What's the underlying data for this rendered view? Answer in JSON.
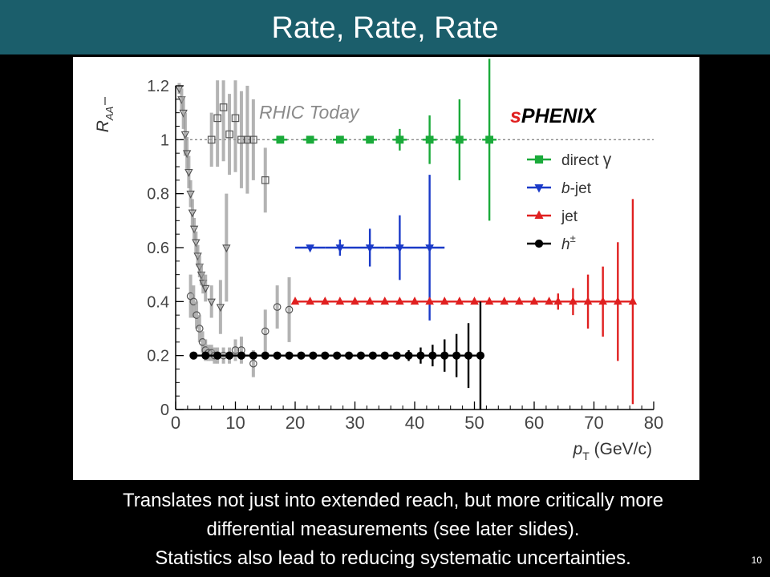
{
  "slide": {
    "title": "Rate, Rate, Rate",
    "caption": [
      "Translates not just into extended reach, but more critically more",
      "differential measurements (see later slides).",
      "Statistics also lead to reducing systematic uncertainties."
    ],
    "slide_number": "10"
  },
  "chart_data": {
    "type": "scatter",
    "xlim": [
      0,
      80
    ],
    "ylim": [
      0,
      1.2
    ],
    "x_ticks": [
      0,
      10,
      20,
      30,
      40,
      50,
      60,
      70,
      80
    ],
    "y_ticks": [
      0,
      0.2,
      0.4,
      0.6,
      0.8,
      1,
      1.2
    ],
    "xlabel": "p_T (GeV/c)",
    "ylabel": "R_AA",
    "reference_line": 1,
    "annotations": {
      "left": "RHIC Today",
      "right": "sPHENIX"
    },
    "legend_position": "right",
    "colors": {
      "direct_gamma": "#1aaa3a",
      "b_jet": "#1a3ac8",
      "jet": "#e02020",
      "hadron": "#000000",
      "rhic": "#777777"
    },
    "series": [
      {
        "name": "direct γ",
        "legend_main": "direct ",
        "legend_sym": "γ",
        "marker": "square",
        "color": "#1aaa3a",
        "y": 1.0,
        "xerr": 1.2,
        "points": [
          [
            17.5,
            0
          ],
          [
            22.5,
            0
          ],
          [
            27.5,
            0
          ],
          [
            32.5,
            0
          ],
          [
            37.5,
            0.04
          ],
          [
            42.5,
            0.09
          ],
          [
            47.5,
            0.15
          ],
          [
            52.5,
            0.3
          ]
        ]
      },
      {
        "name": "b-jet",
        "legend_main": "b",
        "legend_sym": "-jet",
        "marker": "triangle-down",
        "color": "#1a3ac8",
        "y": 0.6,
        "xerr": 2.5,
        "points": [
          [
            22.5,
            0.01
          ],
          [
            27.5,
            0.03
          ],
          [
            32.5,
            0.07
          ],
          [
            37.5,
            0.12
          ],
          [
            42.5,
            0.27
          ]
        ]
      },
      {
        "name": "jet",
        "legend_main": "jet",
        "legend_sym": "",
        "marker": "triangle-up",
        "color": "#e02020",
        "y": 0.4,
        "xerr": 0,
        "points": [
          [
            20,
            0
          ],
          [
            22.5,
            0
          ],
          [
            25,
            0
          ],
          [
            27.5,
            0
          ],
          [
            30,
            0
          ],
          [
            32.5,
            0
          ],
          [
            35,
            0
          ],
          [
            37.5,
            0
          ],
          [
            40,
            0
          ],
          [
            42.5,
            0
          ],
          [
            45,
            0
          ],
          [
            47.5,
            0
          ],
          [
            50,
            0
          ],
          [
            52.5,
            0
          ],
          [
            55,
            0
          ],
          [
            57.5,
            0
          ],
          [
            60,
            0
          ],
          [
            62.5,
            0
          ],
          [
            64,
            0.03
          ],
          [
            66.5,
            0.05
          ],
          [
            69,
            0.1
          ],
          [
            71.5,
            0.13
          ],
          [
            74,
            0.22
          ],
          [
            76.5,
            0.38
          ]
        ]
      },
      {
        "name": "h±",
        "legend_main": "h",
        "legend_sym": "±",
        "marker": "circle",
        "color": "#000000",
        "y": 0.2,
        "xerr": 0,
        "points": [
          [
            3,
            0
          ],
          [
            5,
            0
          ],
          [
            7,
            0
          ],
          [
            9,
            0
          ],
          [
            11,
            0
          ],
          [
            13,
            0
          ],
          [
            15,
            0
          ],
          [
            17,
            0
          ],
          [
            19,
            0
          ],
          [
            21,
            0
          ],
          [
            23,
            0
          ],
          [
            25,
            0
          ],
          [
            27,
            0
          ],
          [
            29,
            0
          ],
          [
            31,
            0
          ],
          [
            33,
            0
          ],
          [
            35,
            0
          ],
          [
            37,
            0.01
          ],
          [
            39,
            0.02
          ],
          [
            41,
            0.03
          ],
          [
            43,
            0.04
          ],
          [
            45,
            0.06
          ],
          [
            47,
            0.08
          ],
          [
            49,
            0.12
          ],
          [
            51,
            0.2
          ]
        ]
      }
    ],
    "rhic_today": {
      "open_triangles": [
        [
          0.6,
          1.19,
          0.02
        ],
        [
          1.0,
          1.15,
          0.04
        ],
        [
          1.3,
          1.1,
          0.06
        ],
        [
          1.6,
          1.02,
          0.08
        ],
        [
          1.9,
          0.95,
          0.06
        ],
        [
          2.2,
          0.88,
          0.06
        ],
        [
          2.5,
          0.8,
          0.05
        ],
        [
          2.8,
          0.73,
          0.05
        ],
        [
          3.1,
          0.67,
          0.04
        ],
        [
          3.4,
          0.62,
          0.04
        ],
        [
          3.7,
          0.57,
          0.04
        ],
        [
          4.0,
          0.53,
          0.04
        ],
        [
          4.3,
          0.5,
          0.04
        ],
        [
          4.6,
          0.47,
          0.04
        ],
        [
          5.0,
          0.45,
          0.05
        ],
        [
          6.0,
          0.4,
          0.06
        ],
        [
          7.5,
          0.38,
          0.1
        ],
        [
          8.5,
          0.6,
          0.2
        ]
      ],
      "open_circles": [
        [
          2.5,
          0.42,
          0.08
        ],
        [
          3.0,
          0.4,
          0.06
        ],
        [
          3.5,
          0.35,
          0.05
        ],
        [
          4.0,
          0.3,
          0.05
        ],
        [
          4.5,
          0.25,
          0.04
        ],
        [
          5.0,
          0.22,
          0.04
        ],
        [
          5.5,
          0.21,
          0.03
        ],
        [
          6.0,
          0.21,
          0.03
        ],
        [
          6.5,
          0.2,
          0.03
        ],
        [
          7.0,
          0.2,
          0.03
        ],
        [
          8.0,
          0.2,
          0.03
        ],
        [
          9.0,
          0.2,
          0.03
        ],
        [
          10.0,
          0.22,
          0.04
        ],
        [
          11.0,
          0.22,
          0.05
        ],
        [
          13.0,
          0.17,
          0.05
        ],
        [
          15.0,
          0.29,
          0.08
        ],
        [
          17.0,
          0.38,
          0.08
        ],
        [
          19.0,
          0.37,
          0.12
        ]
      ],
      "open_squares": [
        [
          6.0,
          1.0,
          0.1
        ],
        [
          7.0,
          1.08,
          0.18
        ],
        [
          8.0,
          1.12,
          0.2
        ],
        [
          9.0,
          1.02,
          0.15
        ],
        [
          10.0,
          1.08,
          0.2
        ],
        [
          11.0,
          1.0,
          0.18
        ],
        [
          12.0,
          1.0,
          0.2
        ],
        [
          13.0,
          1.0,
          0.15
        ],
        [
          15.0,
          0.85,
          0.12
        ]
      ]
    }
  }
}
